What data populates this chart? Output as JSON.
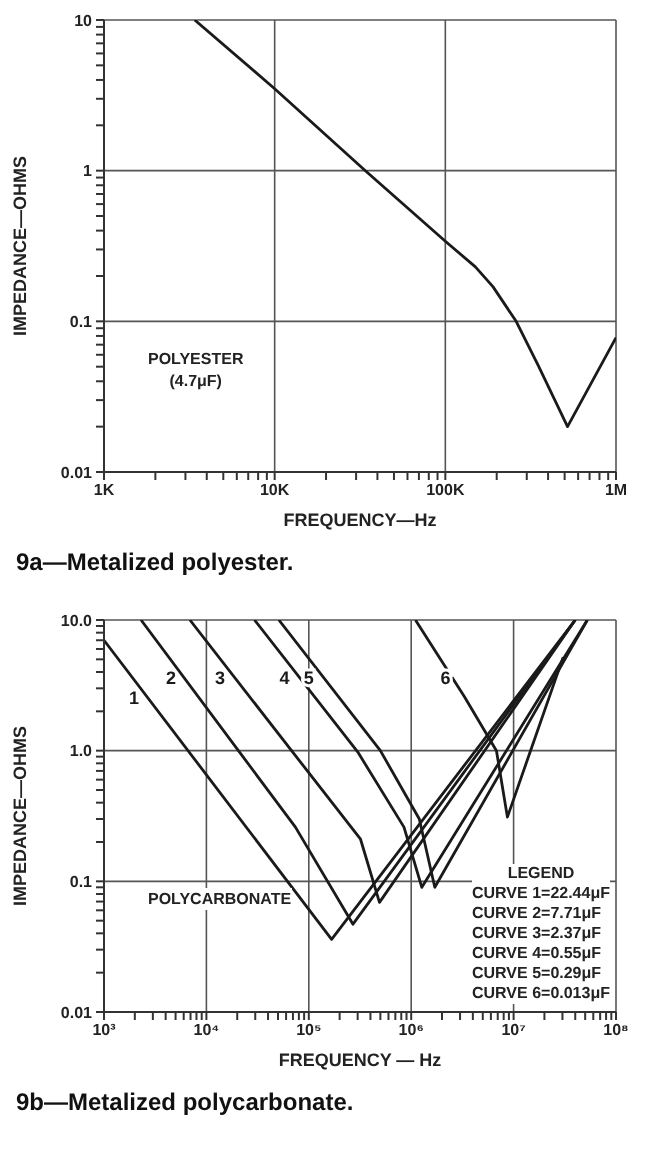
{
  "chart_data": [
    {
      "type": "line",
      "xlabel": "FREQUENCY—Hz",
      "ylabel": "IMPEDANCE—OHMS",
      "log": "xy",
      "grid": true,
      "marker": "none",
      "xlim": [
        1000,
        1000000
      ],
      "ylim": [
        0.01,
        10
      ],
      "xticks": [
        {
          "value": 1000,
          "label": "1K"
        },
        {
          "value": 2000,
          "label": null
        },
        {
          "value": 3000,
          "label": null
        },
        {
          "value": 4000,
          "label": null
        },
        {
          "value": 5000,
          "label": null
        },
        {
          "value": 6000,
          "label": null
        },
        {
          "value": 7000,
          "label": null
        },
        {
          "value": 8000,
          "label": null
        },
        {
          "value": 9000,
          "label": null
        },
        {
          "value": 10000,
          "label": "10K"
        },
        {
          "value": 20000,
          "label": null
        },
        {
          "value": 30000,
          "label": null
        },
        {
          "value": 40000,
          "label": null
        },
        {
          "value": 50000,
          "label": null
        },
        {
          "value": 60000,
          "label": null
        },
        {
          "value": 70000,
          "label": null
        },
        {
          "value": 80000,
          "label": null
        },
        {
          "value": 90000,
          "label": null
        },
        {
          "value": 100000,
          "label": "100K"
        },
        {
          "value": 200000,
          "label": null
        },
        {
          "value": 300000,
          "label": null
        },
        {
          "value": 400000,
          "label": null
        },
        {
          "value": 500000,
          "label": null
        },
        {
          "value": 600000,
          "label": null
        },
        {
          "value": 700000,
          "label": null
        },
        {
          "value": 800000,
          "label": null
        },
        {
          "value": 900000,
          "label": null
        },
        {
          "value": 1000000,
          "label": "1M"
        }
      ],
      "yticks": [
        0.01,
        {
          "value": 0.02,
          "label": null
        },
        {
          "value": 0.03,
          "label": null
        },
        {
          "value": 0.04,
          "label": null
        },
        {
          "value": 0.05,
          "label": null
        },
        {
          "value": 0.06,
          "label": null
        },
        {
          "value": 0.07,
          "label": null
        },
        {
          "value": 0.08,
          "label": null
        },
        {
          "value": 0.09,
          "label": null
        },
        0.1,
        {
          "value": 0.2,
          "label": null
        },
        {
          "value": 0.3,
          "label": null
        },
        {
          "value": 0.4,
          "label": null
        },
        {
          "value": 0.5,
          "label": null
        },
        {
          "value": 0.6,
          "label": null
        },
        {
          "value": 0.7,
          "label": null
        },
        {
          "value": 0.8,
          "label": null
        },
        {
          "value": 0.9,
          "label": null
        },
        1,
        {
          "value": 2,
          "label": null
        },
        {
          "value": 3,
          "label": null
        },
        {
          "value": 4,
          "label": null
        },
        {
          "value": 5,
          "label": null
        },
        {
          "value": 6,
          "label": null
        },
        {
          "value": 7,
          "label": null
        },
        {
          "value": 8,
          "label": null
        },
        {
          "value": 9,
          "label": null
        },
        10
      ],
      "series": [
        {
          "color": "#1a1a1a",
          "x": [
            3400,
            10000,
            34000,
            100000,
            150000,
            190000,
            260000,
            350000,
            520000,
            1000000
          ],
          "values": [
            10,
            3.5,
            1,
            0.34,
            0.23,
            0.17,
            0.1,
            0.051,
            0.02,
            0.078
          ]
        }
      ],
      "annotations": [
        "POLYESTER\n(4.7μF)",
        "9a—Metalized polyester."
      ]
    },
    {
      "type": "line",
      "xlabel": "FREQUENCY — Hz",
      "ylabel": "IMPEDANCE—OHMS",
      "log": "xy",
      "grid": true,
      "marker": "none",
      "xlim": [
        1000,
        100000000
      ],
      "ylim": [
        0.01,
        10
      ],
      "xticks": [
        {
          "value": 1000,
          "label": "10³"
        },
        {
          "value": 2000,
          "label": null
        },
        {
          "value": 3000,
          "label": null
        },
        {
          "value": 4000,
          "label": null
        },
        {
          "value": 5000,
          "label": null
        },
        {
          "value": 6000,
          "label": null
        },
        {
          "value": 7000,
          "label": null
        },
        {
          "value": 8000,
          "label": null
        },
        {
          "value": 9000,
          "label": null
        },
        {
          "value": 10000,
          "label": "10⁴"
        },
        {
          "value": 20000,
          "label": null
        },
        {
          "value": 30000,
          "label": null
        },
        {
          "value": 40000,
          "label": null
        },
        {
          "value": 50000,
          "label": null
        },
        {
          "value": 60000,
          "label": null
        },
        {
          "value": 70000,
          "label": null
        },
        {
          "value": 80000,
          "label": null
        },
        {
          "value": 90000,
          "label": null
        },
        {
          "value": 100000,
          "label": "10⁵"
        },
        {
          "value": 200000,
          "label": null
        },
        {
          "value": 300000,
          "label": null
        },
        {
          "value": 400000,
          "label": null
        },
        {
          "value": 500000,
          "label": null
        },
        {
          "value": 600000,
          "label": null
        },
        {
          "value": 700000,
          "label": null
        },
        {
          "value": 800000,
          "label": null
        },
        {
          "value": 900000,
          "label": null
        },
        {
          "value": 1000000,
          "label": "10⁶"
        },
        {
          "value": 2000000,
          "label": null
        },
        {
          "value": 3000000,
          "label": null
        },
        {
          "value": 4000000,
          "label": null
        },
        {
          "value": 5000000,
          "label": null
        },
        {
          "value": 6000000,
          "label": null
        },
        {
          "value": 7000000,
          "label": null
        },
        {
          "value": 8000000,
          "label": null
        },
        {
          "value": 9000000,
          "label": null
        },
        {
          "value": 10000000,
          "label": "10⁷"
        },
        {
          "value": 20000000,
          "label": null
        },
        {
          "value": 30000000,
          "label": null
        },
        {
          "value": 40000000,
          "label": null
        },
        {
          "value": 50000000,
          "label": null
        },
        {
          "value": 60000000,
          "label": null
        },
        {
          "value": 70000000,
          "label": null
        },
        {
          "value": 80000000,
          "label": null
        },
        {
          "value": 90000000,
          "label": null
        },
        {
          "value": 100000000,
          "label": "10⁸"
        }
      ],
      "yticks": [
        0.01,
        {
          "value": 0.02,
          "label": null
        },
        {
          "value": 0.03,
          "label": null
        },
        {
          "value": 0.04,
          "label": null
        },
        {
          "value": 0.05,
          "label": null
        },
        {
          "value": 0.06,
          "label": null
        },
        {
          "value": 0.07,
          "label": null
        },
        {
          "value": 0.08,
          "label": null
        },
        {
          "value": 0.09,
          "label": null
        },
        0.1,
        {
          "value": 0.2,
          "label": null
        },
        {
          "value": 0.3,
          "label": null
        },
        {
          "value": 0.4,
          "label": null
        },
        {
          "value": 0.5,
          "label": null
        },
        {
          "value": 0.6,
          "label": null
        },
        {
          "value": 0.7,
          "label": null
        },
        {
          "value": 0.8,
          "label": null
        },
        {
          "value": 0.9,
          "label": null
        },
        {
          "value": 1,
          "label": "1.0"
        },
        {
          "value": 2,
          "label": null
        },
        {
          "value": 3,
          "label": null
        },
        {
          "value": 4,
          "label": null
        },
        {
          "value": 5,
          "label": null
        },
        {
          "value": 6,
          "label": null
        },
        {
          "value": 7,
          "label": null
        },
        {
          "value": 8,
          "label": null
        },
        {
          "value": 9,
          "label": null
        },
        {
          "value": 10,
          "label": "10.0"
        }
      ],
      "series": [
        {
          "name": "1",
          "color": "#1a1a1a",
          "x": [
            1000,
            167000,
            40000000
          ],
          "values": [
            7,
            0.036,
            10
          ]
        },
        {
          "name": "2",
          "color": "#1a1a1a",
          "x": [
            2300,
            74000,
            270000,
            40000000
          ],
          "values": [
            10,
            0.26,
            0.047,
            10
          ]
        },
        {
          "name": "3",
          "color": "#1a1a1a",
          "x": [
            6900,
            320000,
            490000,
            40000000
          ],
          "values": [
            10,
            0.21,
            0.069,
            10
          ]
        },
        {
          "name": "4",
          "color": "#1a1a1a",
          "x": [
            29500,
            300000,
            850000,
            1270000,
            52500000
          ],
          "values": [
            10,
            0.98,
            0.26,
            0.09,
            10
          ]
        },
        {
          "name": "5",
          "color": "#1a1a1a",
          "x": [
            51000,
            500000,
            1200000,
            1700000,
            52500000
          ],
          "values": [
            10,
            1,
            0.3,
            0.09,
            10
          ]
        },
        {
          "name": "6",
          "color": "#1a1a1a",
          "x": [
            1100000,
            3300000,
            6800000,
            8700000,
            30500000
          ],
          "values": [
            10,
            2.6,
            1,
            0.31,
            5.2
          ]
        }
      ],
      "annotations": [
        "POLYCARBONATE",
        "LEGEND",
        "CURVE 1=22.44μF",
        "CURVE 2=7.71μF",
        "CURVE 3=2.37μF",
        "CURVE 4=0.55μF",
        "CURVE 5=0.29μF",
        "CURVE 6=0.013μF",
        "9b—Metalized polycarbonate."
      ]
    }
  ]
}
